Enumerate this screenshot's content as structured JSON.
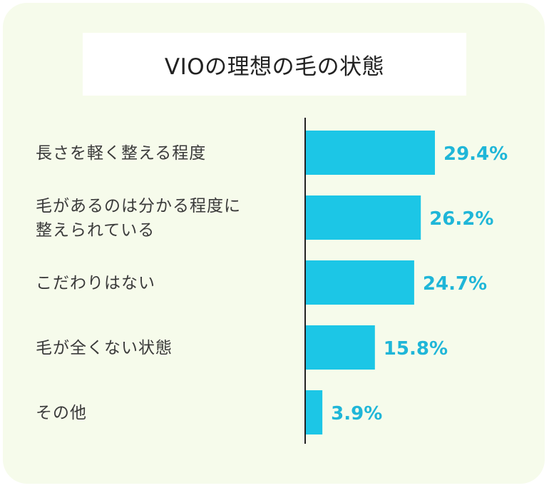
{
  "chart_data": {
    "type": "bar",
    "orientation": "horizontal",
    "title": "VIOの理想の毛の状態",
    "categories": [
      [
        "長さを軽く整える程度"
      ],
      [
        "毛があるのは分かる程度に",
        "整えられている"
      ],
      [
        "こだわりはない"
      ],
      [
        "毛が全くない状態"
      ],
      [
        "その他"
      ]
    ],
    "values": [
      29.4,
      26.2,
      24.7,
      15.8,
      3.9
    ],
    "value_labels": [
      "29.4%",
      "26.2%",
      "24.7%",
      "15.8%",
      "3.9%"
    ],
    "unit": "%",
    "xlim": [
      0,
      30
    ],
    "grid": false,
    "legend": "none",
    "colors": {
      "bar": "#1cc6e6",
      "value_label": "#1fb6d8",
      "background": "#f6fbeb"
    }
  }
}
